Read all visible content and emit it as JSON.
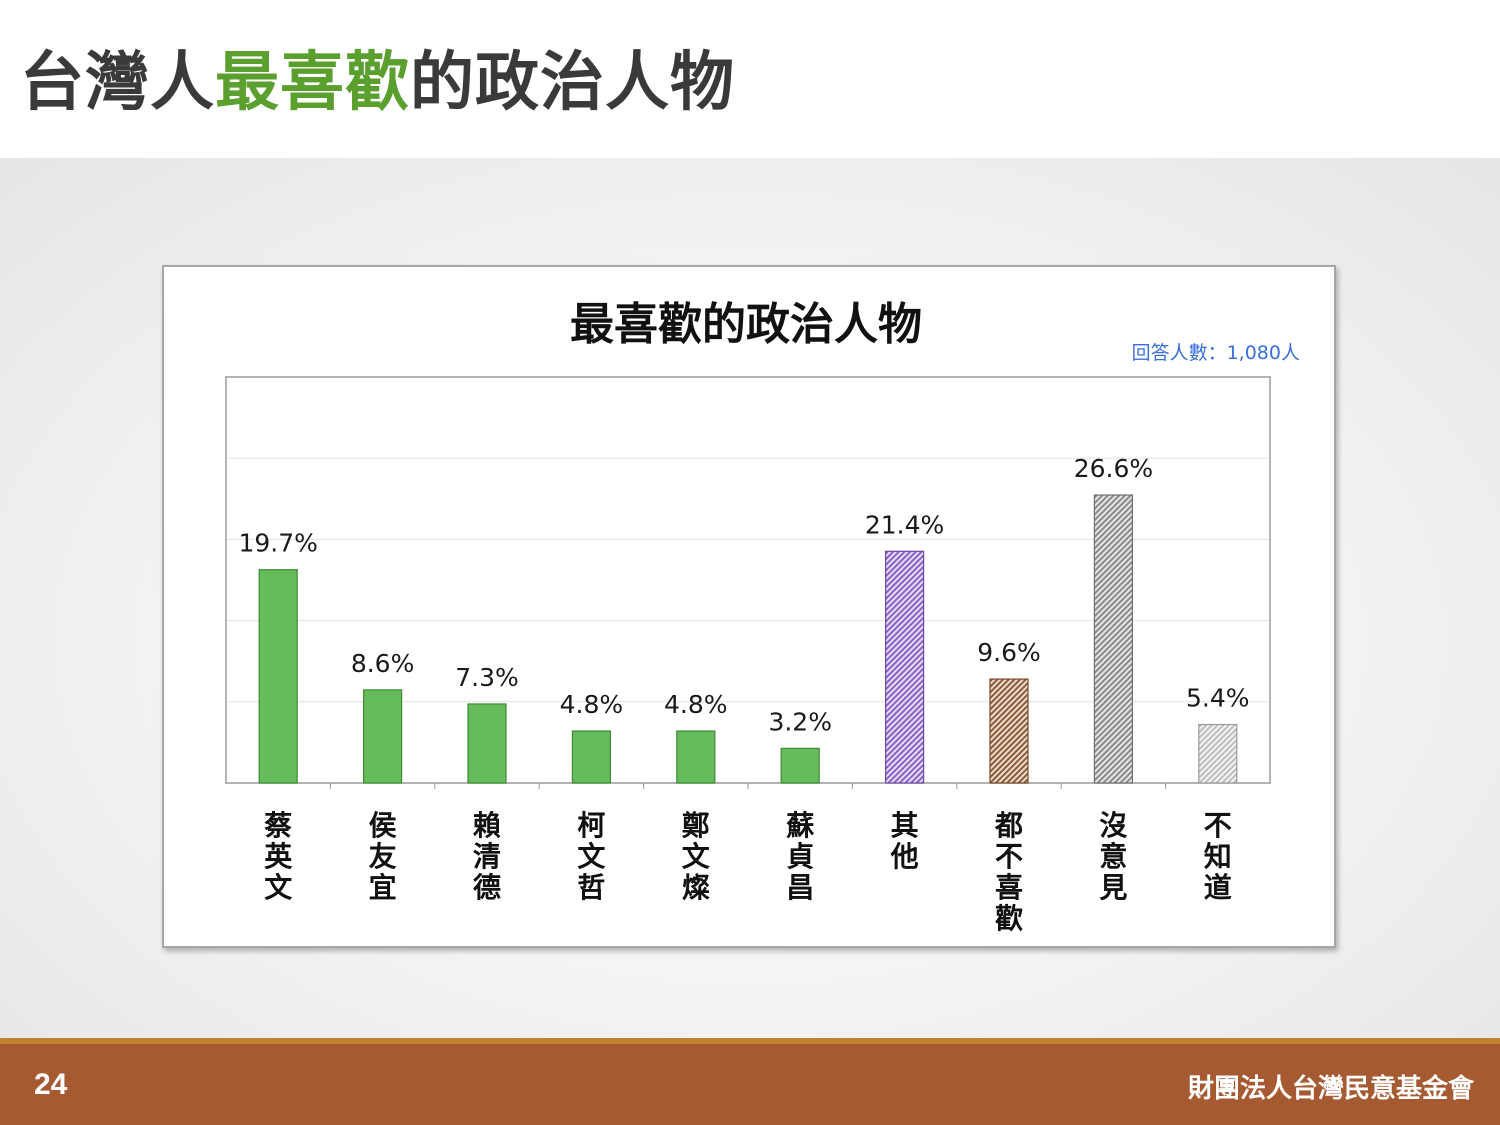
{
  "slide": {
    "title_part1": "台灣人",
    "title_highlight": "最喜歡",
    "title_part2": "的政治人物",
    "page_number": "24",
    "organization": "財團法人台灣民意基金會"
  },
  "colors": {
    "title_highlight": "#5b9f2f",
    "bar_green": "#66bb5a",
    "bar_purple": "#9e7bd0",
    "bar_brown": "#a07050",
    "bar_gray": "#9a9a9a",
    "bar_lightgray": "#c9c9c9",
    "footer": "#a65a32",
    "note": "#3a6fd8"
  },
  "chart_data": {
    "type": "bar",
    "title": "最喜歡的政治人物",
    "note": "回答人數：1,080人",
    "xlabel": "",
    "ylabel": "",
    "ylim": [
      0,
      37.5
    ],
    "grid": true,
    "legend": "none",
    "categories": [
      "蔡英文",
      "侯友宜",
      "賴清德",
      "柯文哲",
      "鄭文燦",
      "蘇貞昌",
      "其他",
      "都不喜歡",
      "沒意見",
      "不知道"
    ],
    "values": [
      19.7,
      8.6,
      7.3,
      4.8,
      4.8,
      3.2,
      21.4,
      9.6,
      26.6,
      5.4
    ],
    "value_labels": [
      "19.7%",
      "8.6%",
      "7.3%",
      "4.8%",
      "4.8%",
      "3.2%",
      "21.4%",
      "9.6%",
      "26.6%",
      "5.4%"
    ],
    "bar_styles": [
      "green",
      "green",
      "green",
      "green",
      "green",
      "green",
      "purple",
      "brown",
      "gray",
      "lightgray"
    ]
  }
}
